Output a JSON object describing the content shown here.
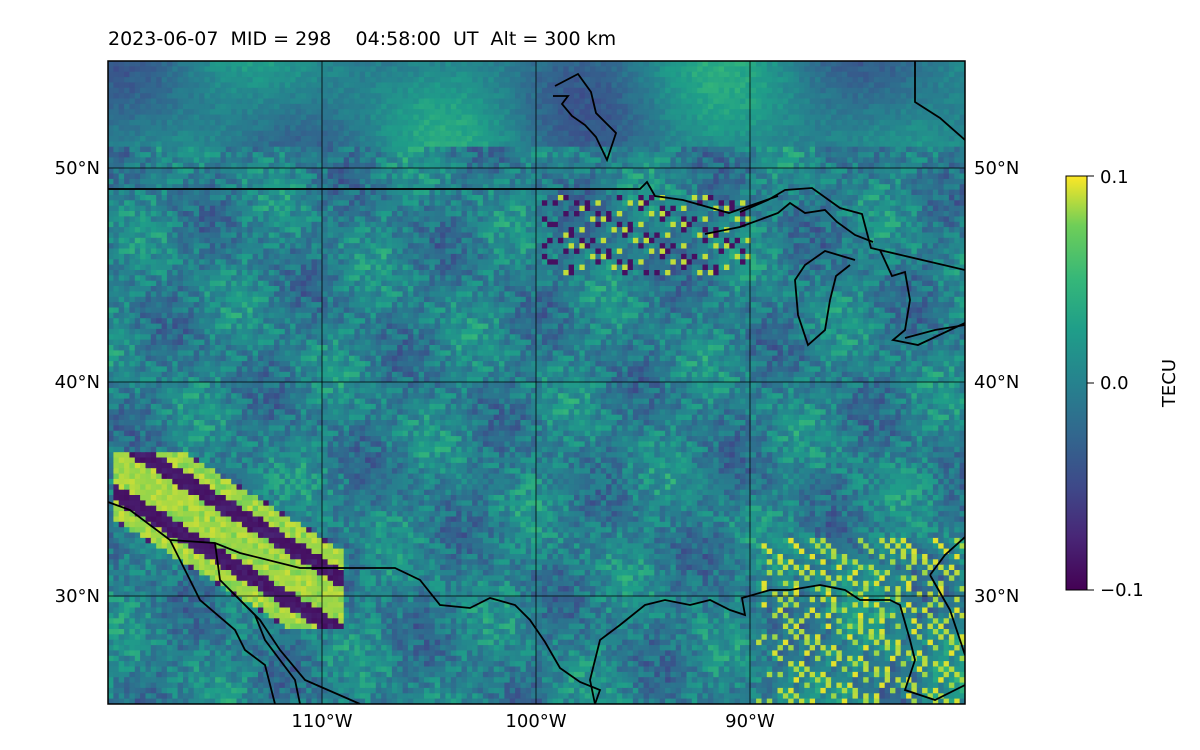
{
  "chart_data": {
    "type": "heatmap",
    "title": "2023-06-07  MID = 298    04:58:00  UT  Alt = 300 km",
    "projection": "lat-lon map",
    "xlim": [
      -120,
      -80
    ],
    "ylim": [
      25,
      55
    ],
    "x_ticks": [
      "110°W",
      "100°W",
      "90°W"
    ],
    "x_tick_values": [
      -110,
      -100,
      -90
    ],
    "y_ticks": [
      "50°N",
      "40°N",
      "30°N"
    ],
    "y_tick_values": [
      50,
      40,
      30
    ],
    "grid": true,
    "colormap": "viridis",
    "colorbar": {
      "label": "TECU",
      "min": -0.1,
      "max": 0.1,
      "ticks": [
        "0.1",
        "0.0",
        "−0.1"
      ],
      "tick_values": [
        0.1,
        0.0,
        -0.1
      ],
      "placement": "right"
    },
    "features": [
      {
        "name": "southwest_front",
        "description": "alternating strong positive/negative band",
        "lon_range": [
          -120,
          -110
        ],
        "lat_range": [
          29,
          36
        ]
      },
      {
        "name": "great_lakes_patch",
        "description": "mixed strong positive/negative cells",
        "lon_range": [
          -100,
          -90
        ],
        "lat_range": [
          45,
          49
        ]
      },
      {
        "name": "gulf_coast_patch",
        "description": "positive cells",
        "lon_range": [
          -90,
          -80
        ],
        "lat_range": [
          25,
          33
        ]
      }
    ]
  }
}
